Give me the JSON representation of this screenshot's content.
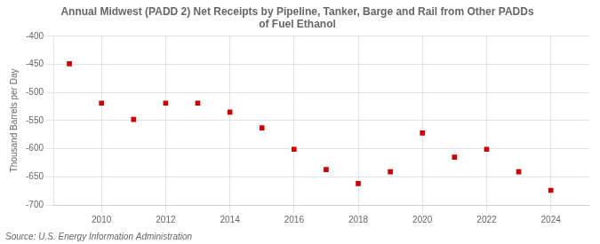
{
  "chart_data": {
    "type": "scatter",
    "title": "Annual Midwest (PADD 2) Net Receipts by Pipeline, Tanker, Barge and Rail from Other PADDs\nof Fuel Ethanol",
    "ylabel": "Thousand Barrels per Day",
    "source": "Source: U.S. Energy Information Administration",
    "x": [
      2009,
      2010,
      2011,
      2012,
      2013,
      2014,
      2015,
      2016,
      2017,
      2018,
      2019,
      2020,
      2021,
      2022,
      2023,
      2024
    ],
    "values": [
      -449,
      -519,
      -548,
      -519,
      -519,
      -535,
      -563,
      -601,
      -637,
      -662,
      -641,
      -572,
      -615,
      -601,
      -641,
      -674
    ],
    "color": "#cc0000",
    "marker": "square",
    "xlim": [
      2008.5,
      2025.2
    ],
    "xticks": [
      2010,
      2012,
      2014,
      2016,
      2018,
      2020,
      2022,
      2024
    ],
    "ylim": [
      -700,
      -400
    ],
    "yticks": [
      -700,
      -650,
      -600,
      -550,
      -500,
      -450,
      -400
    ],
    "grid": true
  }
}
